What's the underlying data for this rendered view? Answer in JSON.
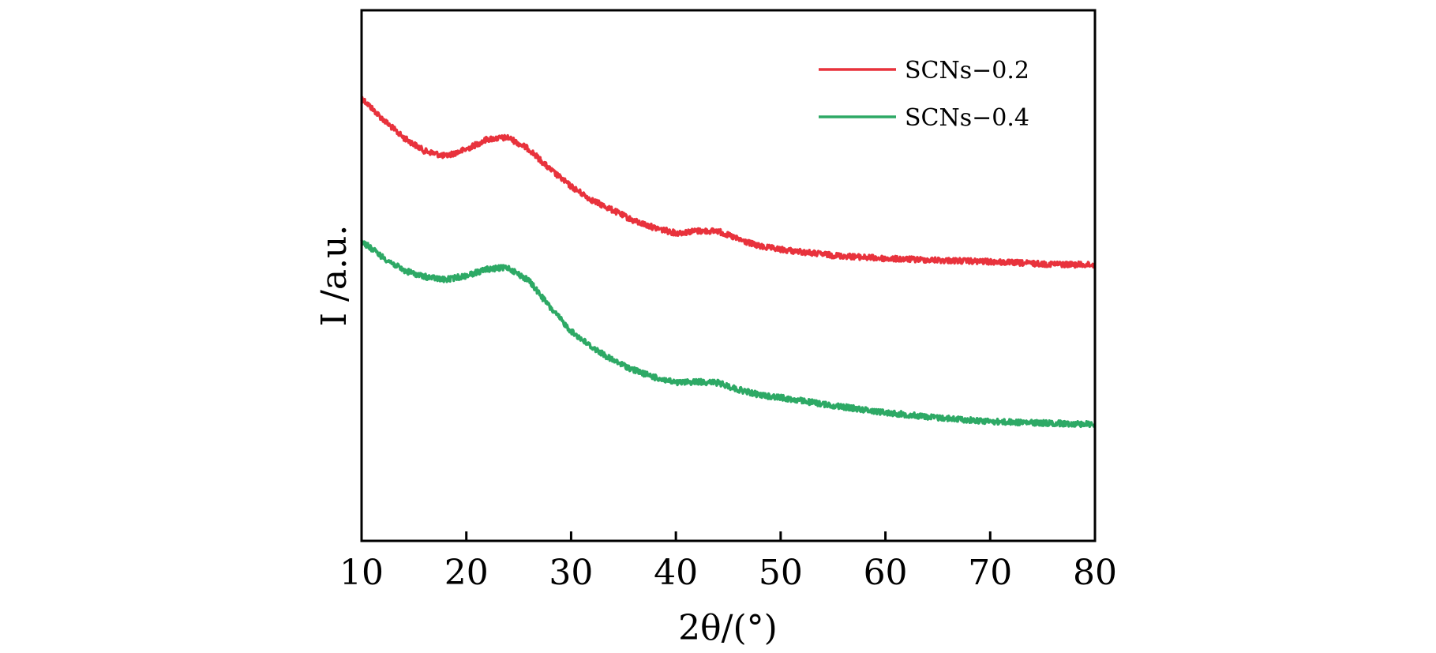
{
  "chart_data": {
    "type": "line",
    "title": "",
    "xlabel": "2θ/(°)",
    "ylabel": "I /a.u.",
    "xlim": [
      10,
      80
    ],
    "ylim": [
      0,
      1
    ],
    "x_ticks": [
      "10",
      "20",
      "30",
      "40",
      "50",
      "60",
      "70",
      "80"
    ],
    "y_ticks_shown": false,
    "grid": false,
    "legend_position": "top-right",
    "series": [
      {
        "name": "SCNs−0.2",
        "color": "#e8323c",
        "points": [
          [
            10,
            0.835
          ],
          [
            12,
            0.795
          ],
          [
            14,
            0.76
          ],
          [
            16,
            0.735
          ],
          [
            18,
            0.725
          ],
          [
            20,
            0.738
          ],
          [
            22,
            0.757
          ],
          [
            24,
            0.76
          ],
          [
            26,
            0.738
          ],
          [
            28,
            0.7
          ],
          [
            30,
            0.668
          ],
          [
            32,
            0.642
          ],
          [
            34,
            0.623
          ],
          [
            36,
            0.603
          ],
          [
            38,
            0.59
          ],
          [
            40,
            0.58
          ],
          [
            42,
            0.584
          ],
          [
            44,
            0.584
          ],
          [
            46,
            0.568
          ],
          [
            48,
            0.555
          ],
          [
            50,
            0.549
          ],
          [
            55,
            0.538
          ],
          [
            60,
            0.532
          ],
          [
            65,
            0.529
          ],
          [
            70,
            0.526
          ],
          [
            75,
            0.522
          ],
          [
            80,
            0.52
          ]
        ]
      },
      {
        "name": "SCNs−0.4",
        "color": "#2da965",
        "points": [
          [
            10,
            0.565
          ],
          [
            12,
            0.535
          ],
          [
            14,
            0.51
          ],
          [
            16,
            0.498
          ],
          [
            18,
            0.492
          ],
          [
            20,
            0.5
          ],
          [
            22,
            0.512
          ],
          [
            24,
            0.515
          ],
          [
            26,
            0.49
          ],
          [
            28,
            0.44
          ],
          [
            30,
            0.395
          ],
          [
            32,
            0.365
          ],
          [
            34,
            0.34
          ],
          [
            36,
            0.322
          ],
          [
            38,
            0.308
          ],
          [
            40,
            0.298
          ],
          [
            42,
            0.3
          ],
          [
            44,
            0.298
          ],
          [
            46,
            0.285
          ],
          [
            48,
            0.275
          ],
          [
            50,
            0.27
          ],
          [
            55,
            0.255
          ],
          [
            60,
            0.242
          ],
          [
            65,
            0.232
          ],
          [
            70,
            0.225
          ],
          [
            75,
            0.222
          ],
          [
            80,
            0.22
          ]
        ]
      }
    ]
  }
}
